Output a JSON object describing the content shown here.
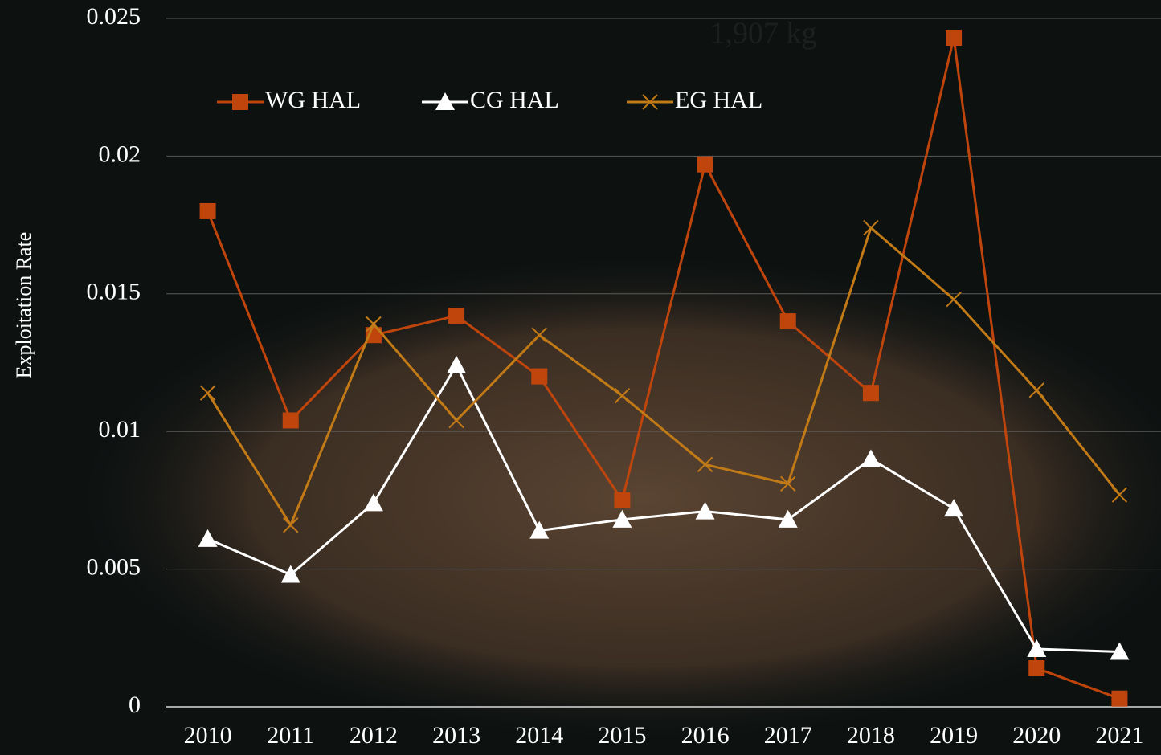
{
  "chart_data": {
    "type": "line",
    "ylabel": "Exploitation Rate",
    "annotation": "1,907 kg",
    "categories": [
      "2010",
      "2011",
      "2012",
      "2013",
      "2014",
      "2015",
      "2016",
      "2017",
      "2018",
      "2019",
      "2020",
      "2021"
    ],
    "series": [
      {
        "name": "WG HAL",
        "color": "#c0450c",
        "marker": "square",
        "values": [
          0.018,
          0.0104,
          0.0135,
          0.0142,
          0.012,
          0.0075,
          0.0197,
          0.014,
          0.0114,
          0.0243,
          0.0014,
          0.0003
        ]
      },
      {
        "name": "CG HAL",
        "color": "#ffffff",
        "marker": "triangle",
        "values": [
          0.0061,
          0.0048,
          0.0074,
          0.0124,
          0.0064,
          0.0068,
          0.0071,
          0.0068,
          0.009,
          0.0072,
          0.0021,
          0.002
        ]
      },
      {
        "name": "EG HAL",
        "color": "#c27a16",
        "marker": "x",
        "values": [
          0.0114,
          0.0066,
          0.0139,
          0.0104,
          0.0135,
          0.0113,
          0.0088,
          0.0081,
          0.0174,
          0.0148,
          0.0115,
          0.0077
        ]
      }
    ],
    "ylim": [
      0,
      0.025
    ],
    "yticks": [
      0,
      0.005,
      0.01,
      0.015,
      0.02,
      0.025
    ],
    "grid": true,
    "legend": "top-left"
  }
}
